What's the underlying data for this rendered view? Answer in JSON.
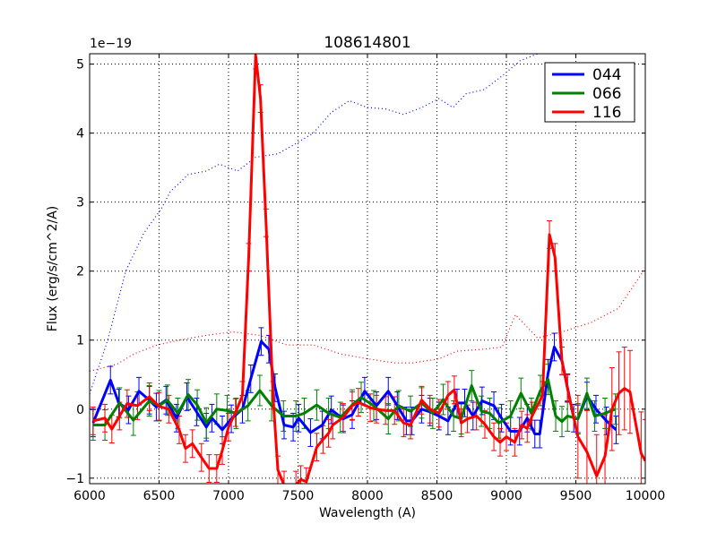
{
  "chart_data": {
    "type": "line",
    "title": "108614801",
    "xlabel": "Wavelength (A)",
    "ylabel": "Flux (erg/s/cm^2/A)",
    "y_offset_label": "1e−19",
    "xlim": [
      6000,
      10000
    ],
    "ylim": [
      -1.08,
      5.15
    ],
    "xticks": [
      6000,
      6500,
      7000,
      7500,
      8000,
      8500,
      9000,
      9500,
      10000
    ],
    "yticks": [
      -1,
      0,
      1,
      2,
      3,
      4,
      5
    ],
    "grid": true,
    "legend_position": "top-right",
    "series": [
      {
        "name": "044",
        "color": "#0000ff",
        "err": 0.2,
        "x": [
          6025,
          6150,
          6210,
          6280,
          6355,
          6430,
          6480,
          6550,
          6625,
          6700,
          6770,
          6840,
          6880,
          6955,
          7020,
          7100,
          7160,
          7235,
          7290,
          7335,
          7400,
          7465,
          7505,
          7590,
          7675,
          7740,
          7825,
          7890,
          7980,
          8065,
          8150,
          8215,
          8280,
          8320,
          8390,
          8450,
          8515,
          8580,
          8645,
          8700,
          8760,
          8825,
          8910,
          8965,
          9030,
          9095,
          9150,
          9205,
          9240,
          9300,
          9345,
          9400,
          9440,
          9485,
          9515,
          9580,
          9645,
          9720,
          9790
        ],
        "y": [
          -0.2,
          0.42,
          0.09,
          -0.01,
          0.26,
          0.13,
          0.03,
          0.13,
          -0.13,
          0.18,
          -0.04,
          -0.26,
          -0.13,
          -0.3,
          -0.14,
          0,
          0.44,
          0.98,
          0.87,
          0.31,
          -0.23,
          -0.26,
          -0.13,
          -0.34,
          -0.23,
          -0.01,
          -0.14,
          -0.08,
          0.26,
          0.05,
          0.26,
          0.05,
          -0.17,
          -0.17,
          0,
          -0.04,
          -0.1,
          -0.17,
          0.09,
          0.09,
          -0.1,
          0.12,
          0.05,
          -0.13,
          -0.32,
          -0.32,
          -0.13,
          -0.36,
          -0.36,
          0.52,
          0.9,
          0.7,
          0.31,
          -0.13,
          -0.14,
          0.19,
          0,
          -0.17,
          -0.3
        ]
      },
      {
        "name": "066",
        "color": "#008000",
        "err": 0.22,
        "x": [
          6025,
          6110,
          6215,
          6315,
          6430,
          6500,
          6560,
          6635,
          6710,
          6775,
          6840,
          6915,
          6990,
          7055,
          7140,
          7225,
          7310,
          7395,
          7485,
          7545,
          7635,
          7720,
          7805,
          7890,
          7955,
          8045,
          8150,
          8225,
          8310,
          8390,
          8470,
          8545,
          8620,
          8675,
          8750,
          8820,
          8880,
          8945,
          9030,
          9105,
          9180,
          9245,
          9300,
          9355,
          9400,
          9440,
          9515,
          9580,
          9635,
          9710,
          9785
        ],
        "y": [
          -0.23,
          -0.23,
          0.09,
          -0.16,
          0.12,
          0.05,
          0.13,
          -0.06,
          0.21,
          0.06,
          -0.2,
          0,
          -0.02,
          -0.06,
          0.05,
          0.27,
          0.05,
          -0.1,
          -0.1,
          -0.06,
          0.06,
          -0.06,
          -0.12,
          0.06,
          0.17,
          0.05,
          -0.14,
          0.05,
          -0.03,
          0.09,
          -0.06,
          0.14,
          -0.1,
          -0.14,
          0.34,
          -0.03,
          -0.06,
          -0.2,
          -0.1,
          0.23,
          -0.06,
          0.27,
          0.43,
          -0.1,
          -0.18,
          -0.1,
          -0.14,
          0.23,
          -0.1,
          -0.06,
          0
        ]
      },
      {
        "name": "116",
        "color": "#ff0000",
        "err": 0.2,
        "err_tail_from": 9450,
        "err_tail": 0.6,
        "x": [
          6025,
          6110,
          6160,
          6215,
          6270,
          6345,
          6430,
          6500,
          6570,
          6645,
          6690,
          6740,
          6805,
          6860,
          6915,
          6955,
          7000,
          7050,
          7100,
          7145,
          7195,
          7230,
          7270,
          7320,
          7355,
          7400,
          7485,
          7520,
          7560,
          7635,
          7680,
          7720,
          7750,
          7825,
          7890,
          7935,
          8020,
          8065,
          8130,
          8195,
          8260,
          8310,
          8390,
          8450,
          8515,
          8580,
          8625,
          8675,
          8720,
          8785,
          8845,
          8910,
          8955,
          9000,
          9060,
          9110,
          9150,
          9185,
          9260,
          9310,
          9350,
          9400,
          9440,
          9515,
          9580,
          9650,
          9710,
          9760,
          9810,
          9850,
          9890,
          9970,
          10000
        ],
        "y": [
          -0.17,
          -0.13,
          -0.29,
          -0.1,
          0.08,
          0.05,
          0.18,
          0.04,
          0,
          -0.3,
          -0.57,
          -0.5,
          -0.7,
          -0.86,
          -0.86,
          -0.6,
          -0.26,
          -0.05,
          0.2,
          2.2,
          5.13,
          4.5,
          2.7,
          0.2,
          -0.88,
          -1.1,
          -1.1,
          -1.02,
          -1.05,
          -0.55,
          -0.44,
          -0.35,
          -0.23,
          -0.12,
          0.05,
          0.1,
          0.02,
          0,
          -0.02,
          -0.02,
          -0.2,
          -0.23,
          0.13,
          0,
          -0.06,
          0.2,
          0.28,
          -0.2,
          -0.14,
          -0.1,
          -0.22,
          -0.4,
          -0.48,
          -0.4,
          -0.48,
          -0.23,
          -0.28,
          -0.1,
          0.2,
          2.53,
          2.2,
          0.7,
          0.3,
          -0.4,
          -0.62,
          -0.97,
          -0.68,
          0,
          0.23,
          0.3,
          0.25,
          -0.64,
          -0.75
        ]
      }
    ],
    "reference_lines": [
      {
        "color": "#0000ff",
        "style": "dotted",
        "x": [
          6000,
          6130,
          6260,
          6390,
          6515,
          6580,
          6710,
          6840,
          6935,
          7065,
          7195,
          7355,
          7485,
          7610,
          7740,
          7870,
          8000,
          8130,
          8260,
          8390,
          8515,
          8615,
          8710,
          8840,
          8970,
          9100,
          9225,
          9400
        ],
        "y": [
          0.22,
          1.0,
          2.0,
          2.55,
          2.9,
          3.15,
          3.4,
          3.45,
          3.55,
          3.45,
          3.65,
          3.7,
          3.85,
          4.0,
          4.3,
          4.47,
          4.37,
          4.35,
          4.27,
          4.37,
          4.5,
          4.37,
          4.57,
          4.63,
          4.83,
          5.05,
          5.15,
          5.4
        ]
      },
      {
        "color": "#ff0000",
        "style": "dotted",
        "x": [
          6000,
          6195,
          6320,
          6485,
          6645,
          6840,
          7030,
          7225,
          7420,
          7610,
          7805,
          8000,
          8195,
          8325,
          8515,
          8645,
          8840,
          8970,
          9065,
          9130,
          9225,
          9420,
          9615,
          9805,
          10000
        ],
        "y": [
          0.55,
          0.65,
          0.8,
          0.93,
          1.0,
          1.07,
          1.12,
          1.07,
          0.93,
          0.93,
          0.8,
          0.73,
          0.67,
          0.67,
          0.73,
          0.84,
          0.87,
          0.9,
          1.37,
          1.23,
          1.03,
          1.13,
          1.26,
          1.46,
          2.04
        ]
      }
    ]
  }
}
